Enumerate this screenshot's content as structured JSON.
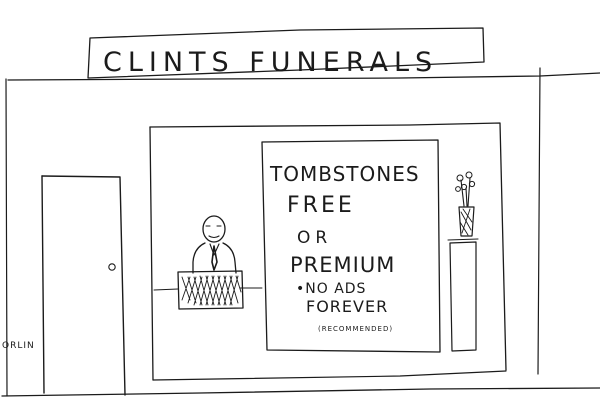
{
  "sign": {
    "text": "CLINTS FUNERALS"
  },
  "poster": {
    "line1": "TOMBSTONES",
    "line2": "FREE",
    "line3": "OR",
    "line4": "PREMIUM",
    "line5": "•NO ADS",
    "line6": "FOREVER",
    "line7": "(RECOMMENDED)"
  },
  "signature": {
    "text": "ORLIN"
  }
}
